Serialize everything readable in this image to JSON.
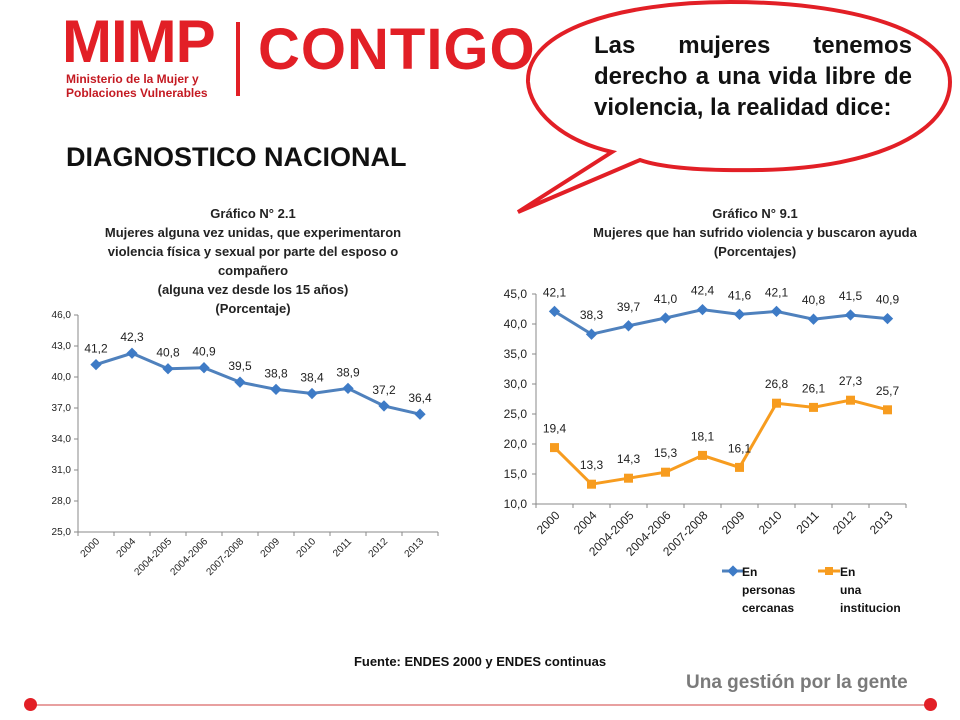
{
  "header": {
    "logo_text": "MIMP",
    "logo_sub_line1": "Ministerio de la Mujer y",
    "logo_sub_line2": "Poblaciones Vulnerables",
    "brand": "CONTIGO",
    "page_title": "DIAGNOSTICO NACIONAL"
  },
  "bubble": {
    "text": "Las mujeres tenemos derecho a una vida libre de violencia, la realidad dice:"
  },
  "colors": {
    "brand": "#e21f26",
    "series_blue": "#4f81bd",
    "series_orange": "#f79c1f",
    "marker_blue": "#3e7bc6"
  },
  "footer": {
    "source": "Fuente: ENDES 2000 y ENDES continuas",
    "slogan": "Una gestión por la gente"
  },
  "chart_data": [
    {
      "type": "line",
      "title_lines": [
        "Gráfico N° 2.1",
        "Mujeres alguna vez unidas, que experimentaron violencia física y sexual por parte del esposo o compañero",
        "(alguna vez desde los 15 años)",
        "(Porcentaje)"
      ],
      "categories": [
        "2000",
        "2004",
        "2004-2005",
        "2004-2006",
        "2007-2008",
        "2009",
        "2010",
        "2011",
        "2012",
        "2013"
      ],
      "series": [
        {
          "name": "Violencia física y sexual",
          "values": [
            41.2,
            42.3,
            40.8,
            40.9,
            39.5,
            38.8,
            38.4,
            38.9,
            37.2,
            36.4
          ],
          "labels": [
            "41,2",
            "42,3",
            "40,8",
            "40,9",
            "39,5",
            "38,8",
            "38,4",
            "38,9",
            "37,2",
            "36,4"
          ]
        }
      ],
      "ylim": [
        25,
        46
      ],
      "yticks": [
        "25,0",
        "28,0",
        "31,0",
        "34,0",
        "37,0",
        "40,0",
        "43,0",
        "46,0"
      ],
      "ytick_values": [
        25,
        28,
        31,
        34,
        37,
        40,
        43,
        46
      ]
    },
    {
      "type": "line",
      "title_lines": [
        "Gráfico N° 9.1",
        "Mujeres que han sufrido violencia y buscaron ayuda",
        "(Porcentajes)"
      ],
      "categories": [
        "2000",
        "2004",
        "2004-2005",
        "2004-2006",
        "2007-2008",
        "2009",
        "2010",
        "2011",
        "2012",
        "2013"
      ],
      "series": [
        {
          "name": "En personas cercanas",
          "values": [
            42.1,
            38.3,
            39.7,
            41.0,
            42.4,
            41.6,
            42.1,
            40.8,
            41.5,
            40.9
          ],
          "labels": [
            "42,1",
            "38,3",
            "39,7",
            "41,0",
            "42,4",
            "41,6",
            "42,1",
            "40,8",
            "41,5",
            "40,9"
          ]
        },
        {
          "name": "En una institucion",
          "values": [
            19.4,
            13.3,
            14.3,
            15.3,
            18.1,
            16.1,
            26.8,
            26.1,
            27.3,
            25.7
          ],
          "labels": [
            "19,4",
            "13,3",
            "14,3",
            "15,3",
            "18,1",
            "16,1",
            "26,8",
            "26,1",
            "27,3",
            "25,7"
          ]
        }
      ],
      "legend_lines": [
        [
          "En",
          "personas",
          "cercanas"
        ],
        [
          "En",
          "una",
          "institucion"
        ]
      ],
      "ylim": [
        10,
        45
      ],
      "yticks": [
        "10,0",
        "15,0",
        "20,0",
        "25,0",
        "30,0",
        "35,0",
        "40,0",
        "45,0"
      ],
      "ytick_values": [
        10,
        15,
        20,
        25,
        30,
        35,
        40,
        45
      ]
    }
  ]
}
